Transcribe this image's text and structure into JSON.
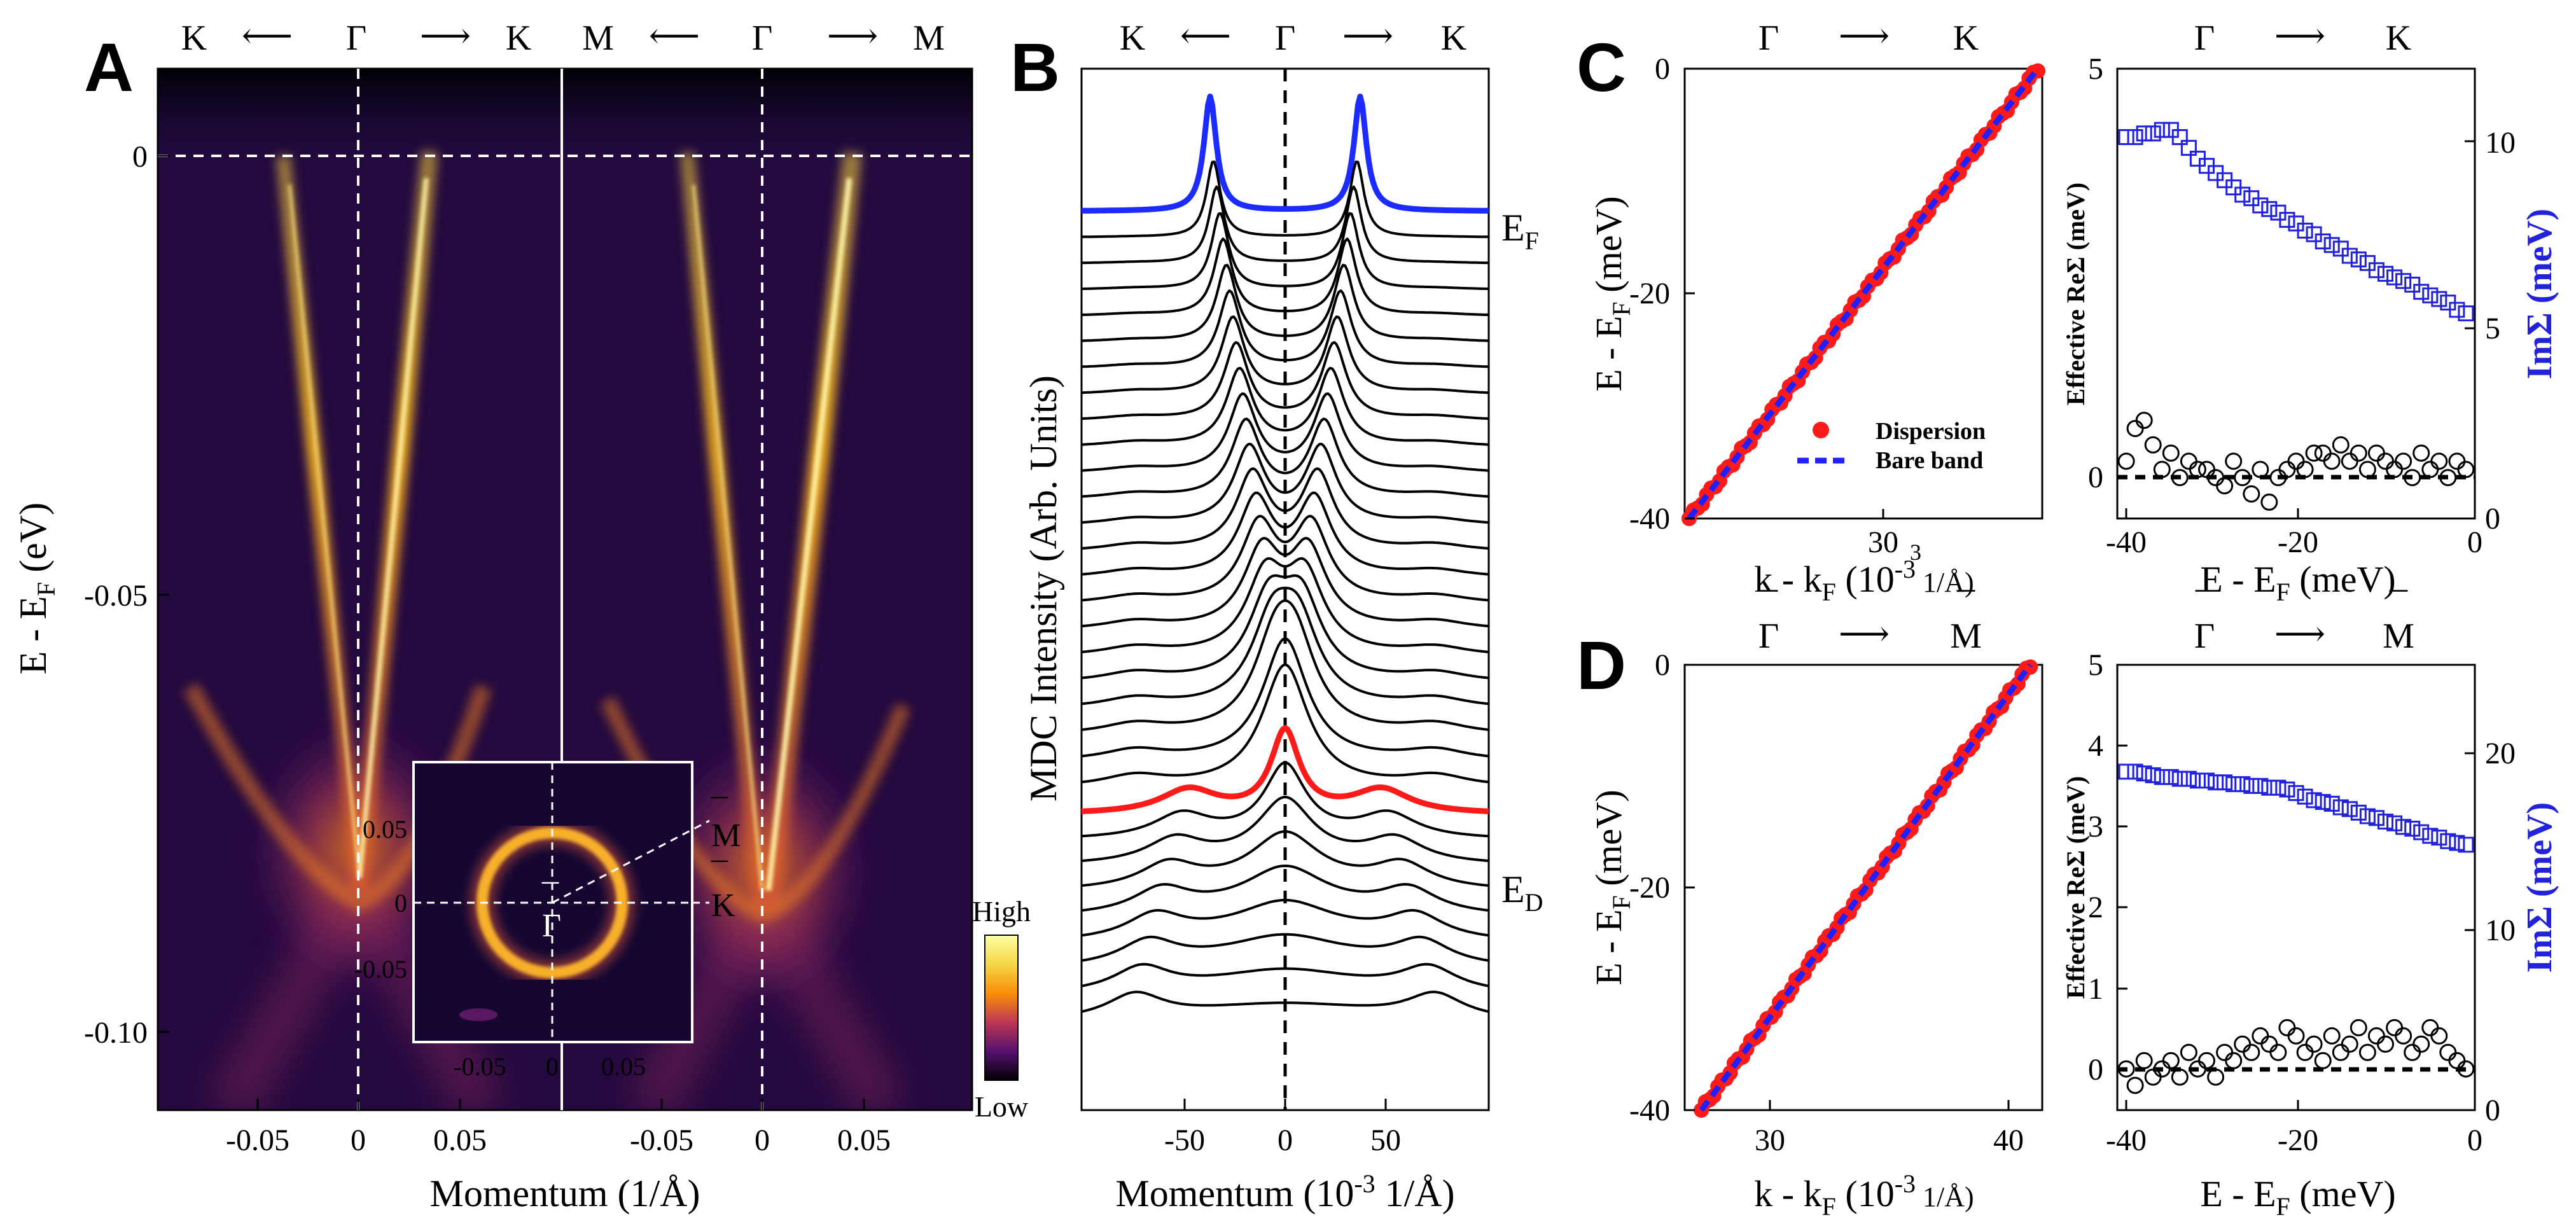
{
  "panel_labels": {
    "a": "A",
    "b": "B",
    "c": "C",
    "d": "D"
  },
  "symbols": {
    "K": "K",
    "Gamma": "Γ",
    "M": "M",
    "arrow_left": "⟵",
    "arrow_right": "⟶",
    "overbar": "¯"
  },
  "colorbar": {
    "high": "High",
    "low": "Low"
  },
  "colors": {
    "dispersion": "#ff1a1a",
    "bare_band": "#1f1fff",
    "im_sigma": "#2222dd",
    "re_sigma": "#000000",
    "ef_curve": "#1c2bff",
    "ed_curve": "#ff1a1a"
  },
  "chart_data": [
    {
      "panel": "A",
      "type": "heatmap",
      "colormap": "inferno",
      "subpanels": [
        "K-Gamma-K",
        "M-Gamma-M"
      ],
      "ylabel": {
        "main": "E - E",
        "sub": "F",
        "unit": " (eV)"
      },
      "xlabel": "Momentum (1/Å)",
      "x_ticks": [
        "-0.05",
        "0",
        "0.05",
        "-0.05",
        "0",
        "0.05"
      ],
      "y_ticks": [
        "0",
        "-0.05",
        "-0.10"
      ],
      "ylim": [
        -0.11,
        0.01
      ],
      "xlim": [
        -0.09,
        0.09
      ],
      "bands": {
        "K-Gamma-K": {
          "k_at_EF": 0.035,
          "k_at_ED": 0.0,
          "E_D": -0.085
        },
        "M-Gamma-M": {
          "k_at_EF": 0.041,
          "k_at_ED": 0.0,
          "E_D": -0.09
        }
      },
      "inset": {
        "type": "fermi-surface-map",
        "x_ticks": [
          "-0.05",
          "0",
          "0.05"
        ],
        "y_ticks": [
          "0.05",
          "0",
          "-0.05"
        ],
        "ring_radius": 0.037,
        "labels": [
          "M",
          "K",
          "Γ"
        ]
      }
    },
    {
      "panel": "B",
      "type": "line",
      "ylabel": "MDC Intensity (Arb. Units)",
      "xlabel": {
        "main": "Momentum (10",
        "sup": "-3",
        "unit": " 1/Å)"
      },
      "x_ticks": [
        "-50",
        "0",
        "50"
      ],
      "xlim": [
        -95,
        95
      ],
      "n_curves": 32,
      "curve_labels": {
        "EF": {
          "main": "E",
          "sub": "F"
        },
        "ED": {
          "main": "E",
          "sub": "D"
        }
      },
      "peak_positions_EF": [
        -35,
        35
      ],
      "peak_positions_ED": [
        0
      ],
      "highlight_index": {
        "EF": 0,
        "ED": 23
      }
    },
    {
      "panel": "C-left",
      "type": "scatter",
      "direction": "Γ-K",
      "xlabel": {
        "main": "k - k",
        "sub": "F",
        "unit_main": "  (10",
        "sup": "-3",
        "unit": " 1/Å)"
      },
      "ylabel": {
        "main": "E - E",
        "sub": "F",
        "unit": " (meV)"
      },
      "x_ticks": [
        "30"
      ],
      "x_tick_extra": "3",
      "y_ticks": [
        "0",
        "-20",
        "-40"
      ],
      "xlim": [
        22,
        38
      ],
      "ylim": [
        -40,
        0
      ],
      "legend": [
        "Dispersion",
        "Bare band"
      ],
      "series": [
        {
          "name": "Dispersion",
          "x_range": [
            22.2,
            37.8
          ],
          "y_range": [
            -40,
            0
          ]
        },
        {
          "name": "Bare band",
          "x": [
            22.2,
            37.8
          ],
          "y": [
            -40,
            0
          ]
        }
      ]
    },
    {
      "panel": "C-right",
      "type": "scatter",
      "direction": "Γ-K",
      "xlabel": {
        "main": "E - E",
        "sub": "F",
        "unit": " (meV)"
      },
      "ylabel_left": "Effective ReΣ (meV)",
      "ylabel_right": "ImΣ (meV)",
      "x_ticks": [
        "-40",
        "-20",
        "0"
      ],
      "y_ticks_left": [
        "5",
        "0"
      ],
      "y_ticks_right": [
        "10",
        "5",
        "0"
      ],
      "xlim": [
        -40,
        0
      ],
      "ylim_left": [
        -0.5,
        5
      ],
      "ylim_right": [
        0,
        12.5
      ],
      "series": [
        {
          "name": "ImΣ",
          "axis": "right",
          "x": [
            -39,
            -38,
            -37,
            -36,
            -35,
            -34,
            -33,
            -32,
            -31,
            -30,
            -29,
            -28,
            -27,
            -26,
            -25,
            -24,
            -23,
            -22,
            -21,
            -20,
            -19,
            -18,
            -17,
            -16,
            -15,
            -14,
            -13,
            -12,
            -11,
            -10,
            -9,
            -8,
            -7,
            -6,
            -5,
            -4,
            -3,
            -2,
            -1
          ],
          "y": [
            10.6,
            10.6,
            10.7,
            10.7,
            10.8,
            10.8,
            10.6,
            10.3,
            10.0,
            9.8,
            9.6,
            9.4,
            9.2,
            9.0,
            8.9,
            8.7,
            8.6,
            8.5,
            8.3,
            8.2,
            8.0,
            7.9,
            7.7,
            7.6,
            7.5,
            7.3,
            7.2,
            7.1,
            6.9,
            6.8,
            6.7,
            6.6,
            6.5,
            6.3,
            6.2,
            6.1,
            6.0,
            5.8,
            5.7
          ]
        },
        {
          "name": "Effective ReΣ",
          "axis": "left",
          "x": [
            -39,
            -38,
            -37,
            -36,
            -35,
            -34,
            -33,
            -32,
            -31,
            -30,
            -29,
            -28,
            -27,
            -26,
            -25,
            -24,
            -23,
            -22,
            -21,
            -20,
            -19,
            -18,
            -17,
            -16,
            -15,
            -14,
            -13,
            -12,
            -11,
            -10,
            -9,
            -8,
            -7,
            -6,
            -5,
            -4,
            -3,
            -2,
            -1
          ],
          "y": [
            0.2,
            0.6,
            0.7,
            0.4,
            0.1,
            0.3,
            0.0,
            0.2,
            0.1,
            0.1,
            0.0,
            -0.1,
            0.2,
            0.0,
            -0.2,
            0.1,
            -0.3,
            0.0,
            0.1,
            0.2,
            0.1,
            0.3,
            0.3,
            0.2,
            0.4,
            0.2,
            0.3,
            0.1,
            0.3,
            0.2,
            0.1,
            0.2,
            0.0,
            0.3,
            0.1,
            0.2,
            0.0,
            0.2,
            0.1
          ]
        }
      ]
    },
    {
      "panel": "D-left",
      "type": "scatter",
      "direction": "Γ-M",
      "xlabel": {
        "main": "k - k",
        "sub": "F",
        "unit_main": "  (10",
        "sup": "-3",
        "unit": " 1/Å)"
      },
      "ylabel": {
        "main": "E - E",
        "sub": "F",
        "unit": " (meV)"
      },
      "x_ticks": [
        "30",
        "40"
      ],
      "y_ticks": [
        "0",
        "-20",
        "-40"
      ],
      "xlim": [
        26.5,
        41.5
      ],
      "ylim": [
        -40,
        0
      ],
      "series": [
        {
          "name": "Dispersion",
          "x_range": [
            27.2,
            41.0
          ],
          "y_range": [
            -40,
            0
          ]
        },
        {
          "name": "Bare band",
          "x": [
            27.2,
            41.0
          ],
          "y": [
            -40,
            0
          ]
        }
      ]
    },
    {
      "panel": "D-right",
      "type": "scatter",
      "direction": "Γ-M",
      "xlabel": {
        "main": "E - E",
        "sub": "F",
        "unit": " (meV)"
      },
      "ylabel_left": "Effective ReΣ (meV)",
      "ylabel_right": "ImΣ (meV)",
      "x_ticks": [
        "-40",
        "-20",
        "0"
      ],
      "y_ticks_left": [
        "5",
        "4",
        "3",
        "2",
        "1",
        "0"
      ],
      "y_ticks_right": [
        "20",
        "10",
        "0"
      ],
      "xlim": [
        -40,
        0
      ],
      "ylim_left": [
        -0.4,
        5
      ],
      "ylim_right": [
        0,
        25
      ],
      "series": [
        {
          "name": "ImΣ",
          "axis": "right",
          "x": [
            -39,
            -38,
            -37,
            -36,
            -35,
            -34,
            -33,
            -32,
            -31,
            -30,
            -29,
            -28,
            -27,
            -26,
            -25,
            -24,
            -23,
            -22,
            -21,
            -20,
            -19,
            -18,
            -17,
            -16,
            -15,
            -14,
            -13,
            -12,
            -11,
            -10,
            -9,
            -8,
            -7,
            -6,
            -5,
            -4,
            -3,
            -2,
            -1
          ],
          "y": [
            19.0,
            19.0,
            18.9,
            18.8,
            18.7,
            18.7,
            18.6,
            18.6,
            18.5,
            18.5,
            18.4,
            18.4,
            18.3,
            18.3,
            18.2,
            18.2,
            18.1,
            18.1,
            18.0,
            17.8,
            17.6,
            17.4,
            17.3,
            17.2,
            17.0,
            16.9,
            16.7,
            16.5,
            16.4,
            16.2,
            16.1,
            15.9,
            15.8,
            15.6,
            15.4,
            15.3,
            15.1,
            15.0,
            14.9
          ]
        },
        {
          "name": "Effective ReΣ",
          "axis": "left",
          "x": [
            -39,
            -38,
            -37,
            -36,
            -35,
            -34,
            -33,
            -32,
            -31,
            -30,
            -29,
            -28,
            -27,
            -26,
            -25,
            -24,
            -23,
            -22,
            -21,
            -20,
            -19,
            -18,
            -17,
            -16,
            -15,
            -14,
            -13,
            -12,
            -11,
            -10,
            -9,
            -8,
            -7,
            -6,
            -5,
            -4,
            -3,
            -2,
            -1
          ],
          "y": [
            0.1,
            -0.1,
            0.2,
            0.0,
            0.1,
            0.2,
            0.0,
            0.3,
            0.1,
            0.2,
            0.0,
            0.3,
            0.2,
            0.4,
            0.3,
            0.5,
            0.4,
            0.3,
            0.6,
            0.5,
            0.3,
            0.4,
            0.2,
            0.5,
            0.3,
            0.4,
            0.6,
            0.3,
            0.5,
            0.4,
            0.6,
            0.5,
            0.3,
            0.4,
            0.6,
            0.5,
            0.3,
            0.2,
            0.1
          ]
        }
      ]
    }
  ]
}
